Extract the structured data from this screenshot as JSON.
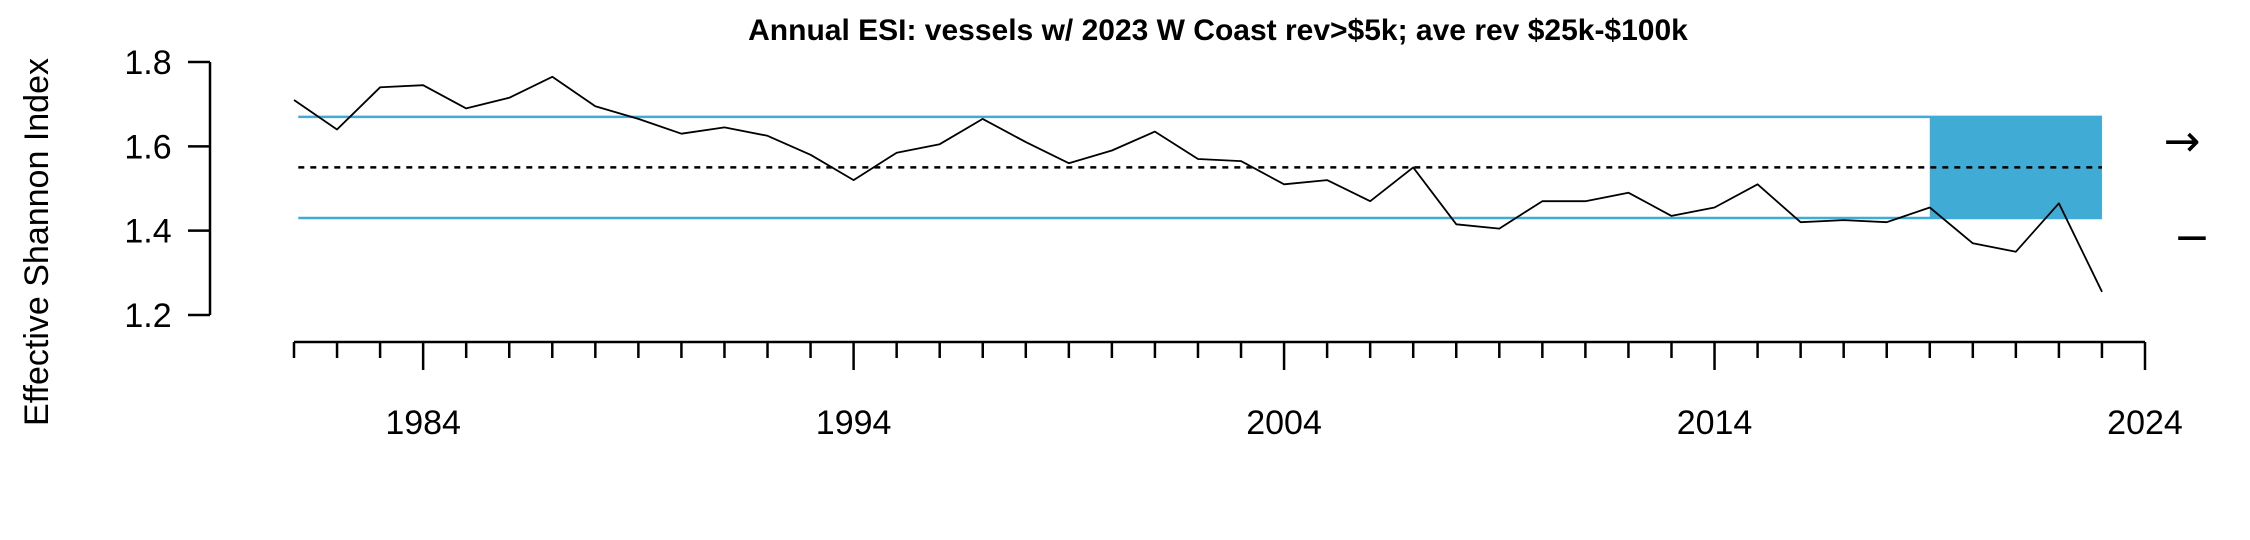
{
  "chart_data": {
    "type": "line",
    "title": "Annual ESI: vessels w/ 2023 W Coast rev>$5k; ave rev $25k-$100k",
    "xlabel": "",
    "ylabel": "Effective Shannon Index",
    "xlim": [
      1981,
      2024
    ],
    "ylim": [
      1.2,
      1.8
    ],
    "x_major_ticks": [
      1984,
      1994,
      2004,
      2014,
      2024
    ],
    "y_ticks": [
      1.2,
      1.4,
      1.6,
      1.8
    ],
    "y_tick_labels": [
      "1.2",
      "1.4",
      "1.6",
      "1.8"
    ],
    "series": [
      {
        "x": [
          1981,
          1982,
          1983,
          1984,
          1985,
          1986,
          1987,
          1988,
          1989,
          1990,
          1991,
          1992,
          1993,
          1994,
          1995,
          1996,
          1997,
          1998,
          1999,
          2000,
          2001,
          2002,
          2003,
          2004,
          2005,
          2006,
          2007,
          2008,
          2009,
          2010,
          2011,
          2012,
          2013,
          2014,
          2015,
          2016,
          2017,
          2018,
          2019,
          2020,
          2021,
          2022,
          2023
        ],
        "values": [
          1.71,
          1.64,
          1.74,
          1.745,
          1.69,
          1.715,
          1.765,
          1.695,
          1.665,
          1.63,
          1.645,
          1.625,
          1.58,
          1.52,
          1.585,
          1.605,
          1.665,
          1.61,
          1.56,
          1.59,
          1.635,
          1.57,
          1.565,
          1.51,
          1.52,
          1.47,
          1.55,
          1.415,
          1.405,
          1.47,
          1.47,
          1.49,
          1.435,
          1.455,
          1.51,
          1.42,
          1.425,
          1.42,
          1.455,
          1.37,
          1.35,
          1.465,
          1.255
        ],
        "color": "#000000"
      }
    ],
    "reference_lines": {
      "mean": 1.55,
      "upper_sd": 1.67,
      "lower_sd": 1.43,
      "mean_style": "dotted",
      "sd_color": "#40ACD6"
    },
    "highlight_range": {
      "x": [
        2019,
        2023
      ],
      "y": [
        1.43,
        1.67
      ],
      "color": "#40ACD6"
    },
    "trend_indicators": {
      "trend": "→",
      "level": "−"
    }
  }
}
